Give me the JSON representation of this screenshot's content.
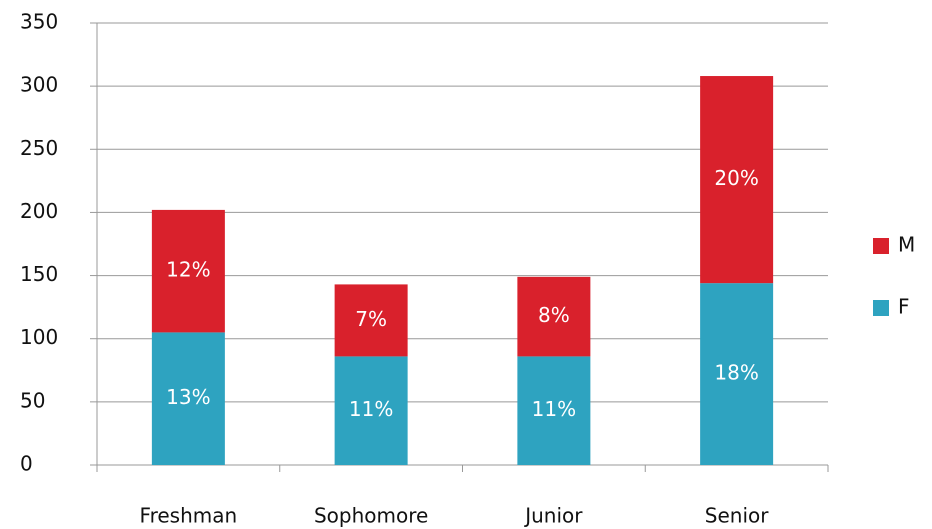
{
  "chart_data": {
    "type": "stacked_bar",
    "categories": [
      "Freshman",
      "Sophomore",
      "Junior",
      "Senior"
    ],
    "series": [
      {
        "name": "F",
        "color": "#2ea3c0",
        "values": [
          105,
          86,
          86,
          144
        ],
        "value_labels": [
          "13%",
          "11%",
          "11%",
          "18%"
        ]
      },
      {
        "name": "M",
        "color": "#d9212c",
        "values": [
          97,
          57,
          63,
          164
        ],
        "value_labels": [
          "12%",
          "7%",
          "8%",
          "20%"
        ]
      }
    ],
    "ylim": [
      0,
      350
    ],
    "yticks": [
      0,
      50,
      100,
      150,
      200,
      250,
      300,
      350
    ],
    "grid": true,
    "legend": "right"
  }
}
